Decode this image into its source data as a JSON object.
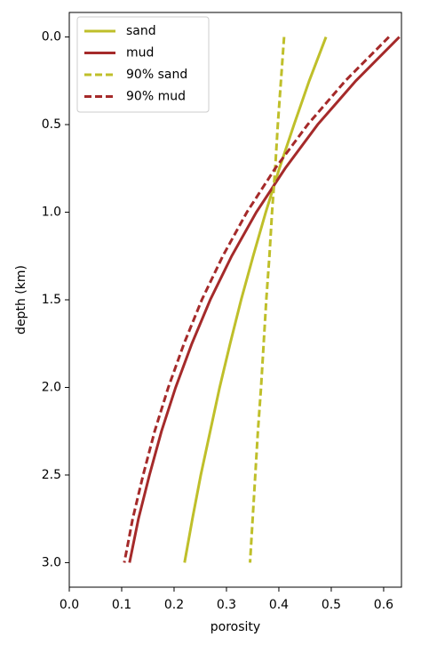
{
  "chart_data": {
    "type": "line",
    "xlabel": "porosity",
    "ylabel": "depth (km)",
    "y": [
      0,
      0.25,
      0.5,
      0.75,
      1,
      1.25,
      1.5,
      1.75,
      2,
      2.25,
      2.5,
      2.75,
      3
    ],
    "series": [
      {
        "name": "sand",
        "color": "#bfbf2a",
        "linestyle": "solid",
        "x": [
          0.49,
          0.458,
          0.429,
          0.401,
          0.375,
          0.351,
          0.328,
          0.307,
          0.287,
          0.269,
          0.251,
          0.235,
          0.22
        ]
      },
      {
        "name": "mud",
        "color": "#a52a2a",
        "linestyle": "solid",
        "x": [
          0.63,
          0.547,
          0.474,
          0.412,
          0.357,
          0.31,
          0.269,
          0.234,
          0.203,
          0.176,
          0.153,
          0.132,
          0.115
        ]
      },
      {
        "name": "90% sand",
        "color": "#bfbf2a",
        "linestyle": "dashed",
        "x": [
          0.41,
          0.404,
          0.398,
          0.393,
          0.387,
          0.382,
          0.376,
          0.371,
          0.366,
          0.36,
          0.355,
          0.35,
          0.345
        ]
      },
      {
        "name": "90% mud",
        "color": "#a52a2a",
        "linestyle": "dashed",
        "x": [
          0.61,
          0.527,
          0.455,
          0.393,
          0.339,
          0.293,
          0.253,
          0.219,
          0.189,
          0.163,
          0.141,
          0.121,
          0.105
        ]
      }
    ],
    "xlim": [
      0,
      0.634
    ],
    "ylim": [
      3.14,
      -0.14
    ],
    "xticks": [
      {
        "value": 0,
        "label": "0.0"
      },
      0.1,
      0.2,
      0.3,
      0.4,
      0.5,
      0.6
    ],
    "yticks": [
      {
        "value": 0,
        "label": "0.0"
      },
      0.5,
      {
        "value": 1,
        "label": "1.0"
      },
      1.5,
      {
        "value": 2,
        "label": "2.0"
      },
      2.5,
      {
        "value": 3,
        "label": "3.0"
      }
    ],
    "legend": "upper left",
    "grid": false
  }
}
